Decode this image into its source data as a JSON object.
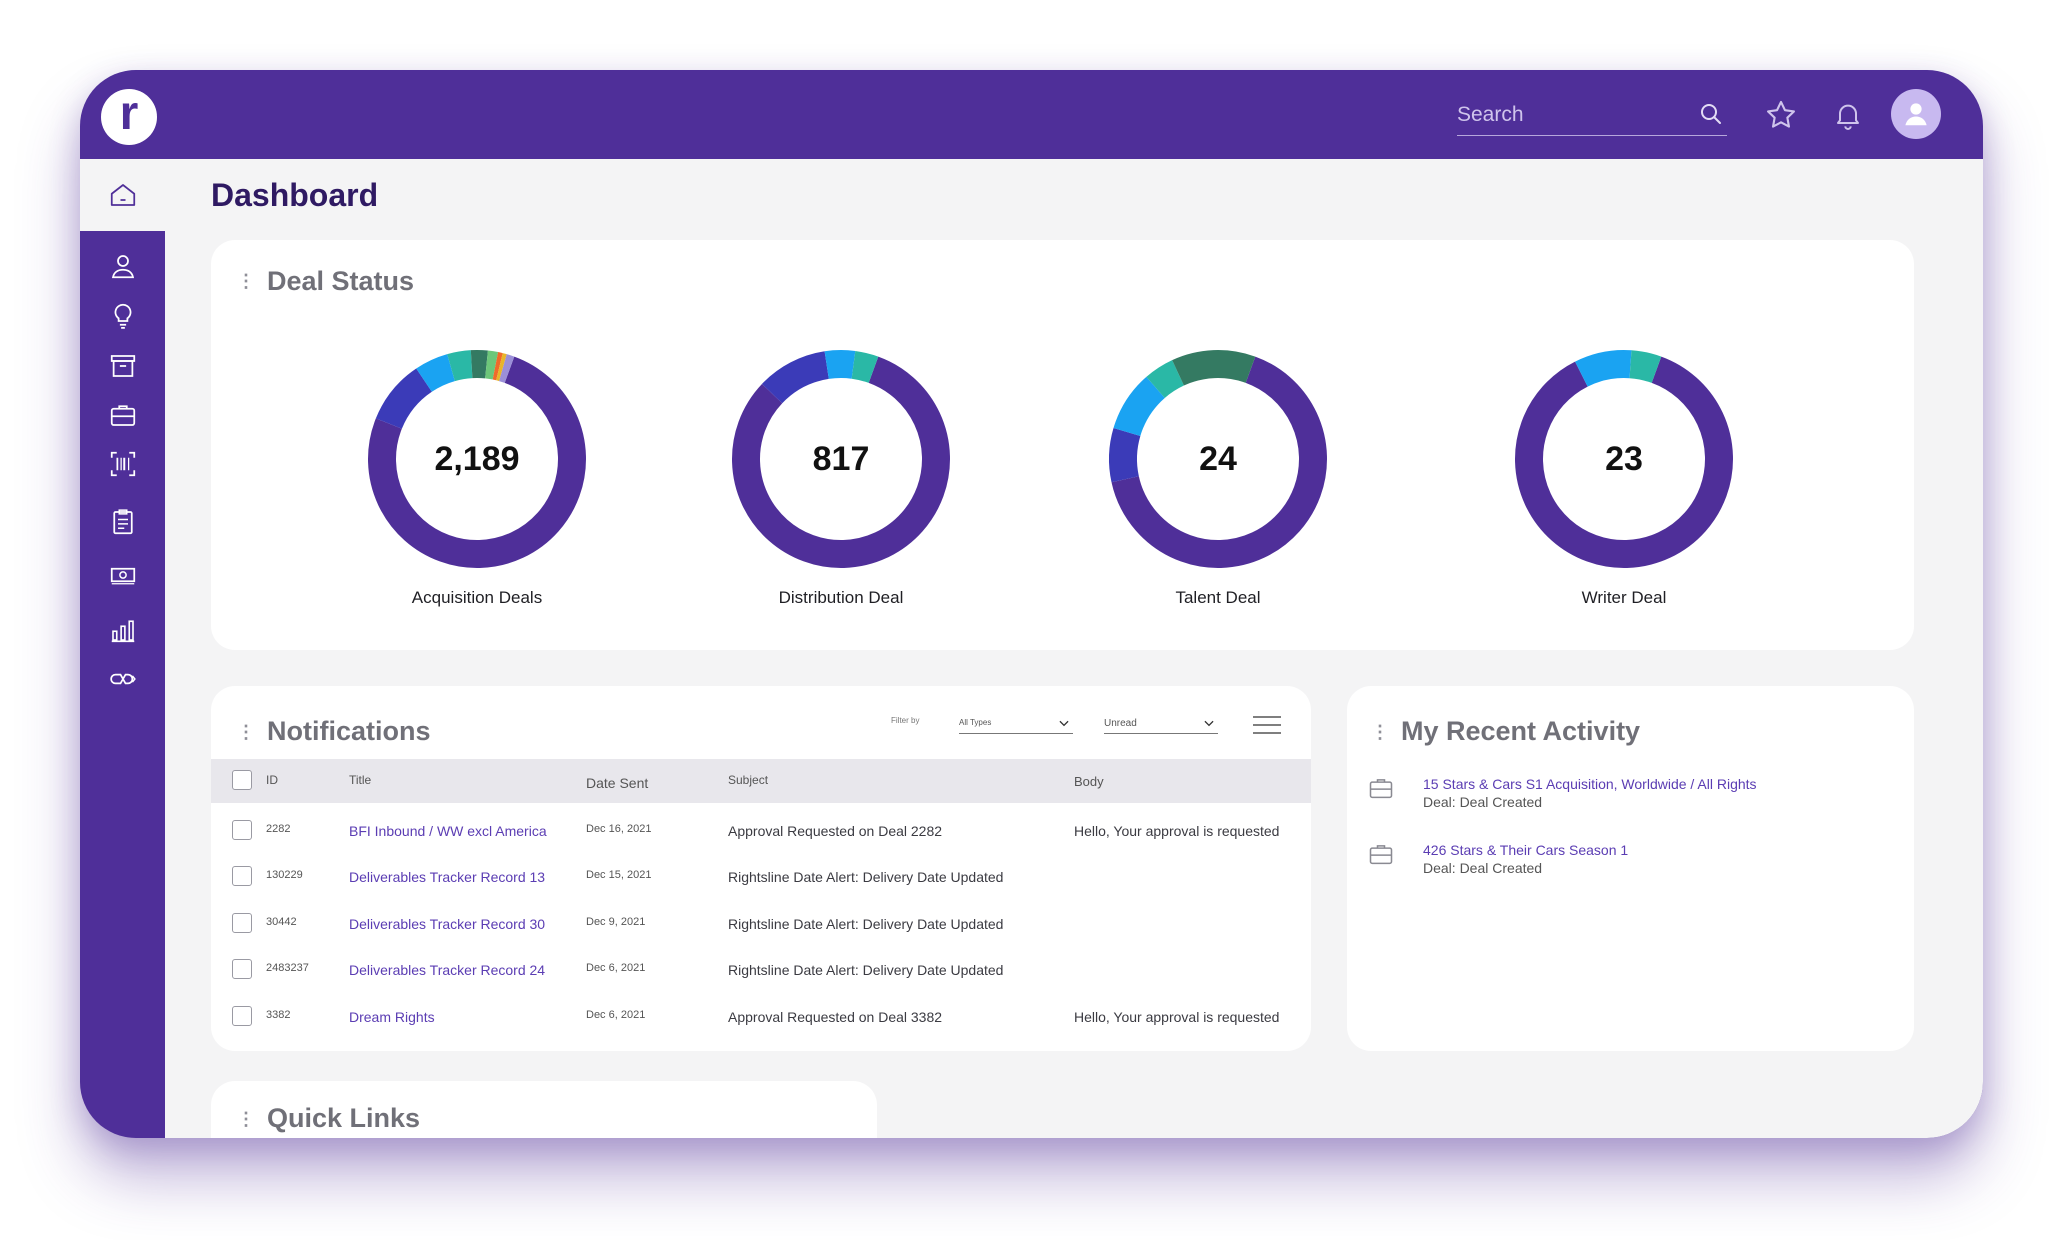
{
  "app": {
    "logo_letter": "r"
  },
  "header": {
    "search_placeholder": "Search"
  },
  "page": {
    "title": "Dashboard"
  },
  "deal_status": {
    "title": "Deal Status",
    "deals": [
      {
        "label": "Acquisition Deals",
        "count": "2,189",
        "segments": [
          {
            "fraction": 0.755,
            "color": "#4f2f99"
          },
          {
            "fraction": 0.095,
            "color": "#3b3bb8"
          },
          {
            "fraction": 0.05,
            "color": "#1aa3f2"
          },
          {
            "fraction": 0.035,
            "color": "#2ab8a6"
          },
          {
            "fraction": 0.025,
            "color": "#347a62"
          },
          {
            "fraction": 0.015,
            "color": "#6dc77a"
          },
          {
            "fraction": 0.007,
            "color": "#f06a2a"
          },
          {
            "fraction": 0.006,
            "color": "#e8b52a"
          },
          {
            "fraction": 0.012,
            "color": "#9b8fd8"
          }
        ]
      },
      {
        "label": "Distribution Deal",
        "count": "817",
        "segments": [
          {
            "fraction": 0.815,
            "color": "#4f2f99"
          },
          {
            "fraction": 0.105,
            "color": "#3b3bb8"
          },
          {
            "fraction": 0.045,
            "color": "#1aa3f2"
          },
          {
            "fraction": 0.035,
            "color": "#2ab8a6"
          }
        ]
      },
      {
        "label": "Talent Deal",
        "count": "24",
        "segments": [
          {
            "fraction": 0.66,
            "color": "#4f2f99"
          },
          {
            "fraction": 0.08,
            "color": "#3b3bb8"
          },
          {
            "fraction": 0.09,
            "color": "#1aa3f2"
          },
          {
            "fraction": 0.045,
            "color": "#2ab8a6"
          },
          {
            "fraction": 0.125,
            "color": "#347a62"
          }
        ]
      },
      {
        "label": "Writer Deal",
        "count": "23",
        "segments": [
          {
            "fraction": 0.87,
            "color": "#4f2f99"
          },
          {
            "fraction": 0.085,
            "color": "#1aa3f2"
          },
          {
            "fraction": 0.045,
            "color": "#2ab8a6"
          }
        ]
      }
    ]
  },
  "notifications": {
    "title": "Notifications",
    "filter_label": "Filter by",
    "type_filter": "All Types",
    "read_filter": "Unread",
    "columns": {
      "id": "ID",
      "title": "Title",
      "date": "Date Sent",
      "subject": "Subject",
      "body": "Body"
    },
    "rows": [
      {
        "id": "2282",
        "title": "BFI Inbound / WW excl America",
        "date": "Dec 16, 2021",
        "subject": "Approval Requested on Deal 2282",
        "body": "Hello, Your approval is requested"
      },
      {
        "id": "130229",
        "title": "Deliverables Tracker Record 13",
        "date": "Dec 15, 2021",
        "subject": "Rightsline Date Alert: Delivery Date Updated",
        "body": ""
      },
      {
        "id": "30442",
        "title": "Deliverables Tracker Record 30",
        "date": "Dec 9, 2021",
        "subject": "Rightsline Date Alert: Delivery Date Updated",
        "body": ""
      },
      {
        "id": "2483237",
        "title": "Deliverables Tracker Record 24",
        "date": "Dec 6, 2021",
        "subject": "Rightsline Date Alert: Delivery Date Updated",
        "body": ""
      },
      {
        "id": "3382",
        "title": "Dream Rights",
        "date": "Dec 6, 2021",
        "subject": "Approval Requested on Deal 3382",
        "body": "Hello, Your approval is requested"
      }
    ]
  },
  "recent_activity": {
    "title": "My Recent Activity",
    "items": [
      {
        "link": "15 Stars & Cars S1 Acquisition, Worldwide / All Rights",
        "sub": "Deal: Deal Created"
      },
      {
        "link": "426 Stars & Their Cars Season 1",
        "sub": "Deal: Deal Created"
      }
    ]
  },
  "quick_links": {
    "title": "Quick Links"
  }
}
